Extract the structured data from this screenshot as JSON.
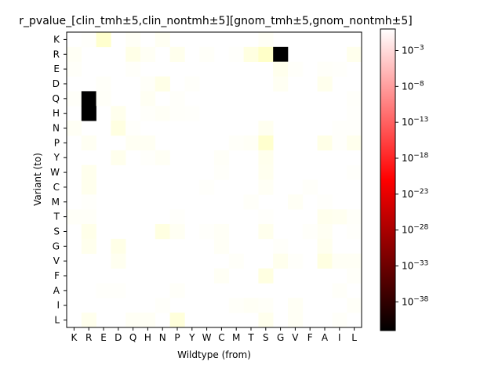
{
  "chart_data": {
    "type": "heatmap",
    "title": "r_pvalue_[clin_tmh±5,clin_nontmh±5][gnom_tmh±5,gnom_nontmh±5]",
    "xlabel": "Wildtype (from)",
    "ylabel": "Variant (to)",
    "x_categories": [
      "K",
      "R",
      "E",
      "D",
      "Q",
      "H",
      "N",
      "P",
      "Y",
      "W",
      "C",
      "M",
      "T",
      "S",
      "G",
      "V",
      "F",
      "A",
      "I",
      "L"
    ],
    "y_categories": [
      "K",
      "R",
      "E",
      "D",
      "Q",
      "H",
      "N",
      "P",
      "Y",
      "W",
      "C",
      "M",
      "T",
      "S",
      "G",
      "V",
      "F",
      "A",
      "I",
      "L"
    ],
    "colormap": "afmhot",
    "color_scale": "log10",
    "colorbar": {
      "log10_range": [
        -42,
        0
      ],
      "tick_exponents": [
        -3,
        -8,
        -13,
        -18,
        -23,
        -28,
        -33,
        -38
      ],
      "tick_labels": [
        "10^-3",
        "10^-8",
        "10^-13",
        "10^-18",
        "10^-23",
        "10^-28",
        "10^-33",
        "10^-38"
      ]
    },
    "log10_values": [
      [
        null,
        -0.3,
        -4,
        null,
        -0.7,
        null,
        -1,
        null,
        null,
        null,
        null,
        null,
        null,
        -0.7,
        null,
        null,
        null,
        null,
        null,
        null
      ],
      [
        -0.8,
        null,
        null,
        null,
        -2,
        -0.8,
        null,
        -1.5,
        null,
        -0.5,
        null,
        -0.3,
        -2.5,
        -4.5,
        -45,
        null,
        null,
        null,
        null,
        -1.5
      ],
      [
        -0.5,
        null,
        null,
        null,
        -0.4,
        null,
        null,
        null,
        null,
        null,
        null,
        null,
        null,
        null,
        -1.5,
        -0.4,
        null,
        -0.5,
        -0.3,
        null
      ],
      [
        null,
        null,
        -0.5,
        null,
        null,
        -0.6,
        -2,
        null,
        -0.4,
        null,
        null,
        null,
        null,
        null,
        -1,
        null,
        null,
        -1.5,
        null,
        null
      ],
      [
        -0.5,
        -45,
        -0.6,
        null,
        null,
        -1,
        null,
        -0.4,
        null,
        null,
        null,
        null,
        null,
        null,
        null,
        null,
        null,
        null,
        null,
        -0.4
      ],
      [
        null,
        -45,
        null,
        -1.5,
        null,
        -0.4,
        -0.7,
        -0.4,
        -0.3,
        null,
        null,
        null,
        null,
        null,
        null,
        null,
        null,
        null,
        null,
        -0.3
      ],
      [
        -0.8,
        null,
        null,
        -2.5,
        -0.3,
        null,
        null,
        null,
        null,
        null,
        null,
        null,
        null,
        -1.2,
        null,
        null,
        null,
        null,
        -0.3,
        -0.3
      ],
      [
        null,
        -1,
        null,
        null,
        -1,
        -1,
        null,
        null,
        null,
        null,
        null,
        -0.5,
        -0.7,
        -4,
        null,
        null,
        null,
        -2,
        -0.3,
        -1.5
      ],
      [
        null,
        null,
        null,
        -1.5,
        null,
        -0.3,
        -0.8,
        null,
        null,
        null,
        -0.6,
        null,
        null,
        -1.5,
        null,
        null,
        null,
        null,
        null,
        null
      ],
      [
        null,
        -1.5,
        null,
        null,
        null,
        null,
        null,
        null,
        null,
        null,
        -0.4,
        null,
        null,
        -1.3,
        null,
        null,
        null,
        null,
        null,
        -0.3
      ],
      [
        null,
        -1.5,
        null,
        null,
        null,
        null,
        null,
        null,
        null,
        -0.3,
        null,
        null,
        null,
        -0.8,
        null,
        null,
        -0.4,
        null,
        null,
        null
      ],
      [
        null,
        -0.3,
        null,
        null,
        null,
        null,
        null,
        null,
        null,
        null,
        null,
        null,
        -0.5,
        null,
        null,
        -0.8,
        null,
        -0.3,
        null,
        null
      ],
      [
        -0.6,
        -0.6,
        null,
        null,
        null,
        null,
        null,
        -0.3,
        null,
        null,
        null,
        null,
        null,
        -0.3,
        null,
        null,
        null,
        -1.5,
        -1.2,
        -0.5
      ],
      [
        null,
        -1.8,
        null,
        null,
        null,
        null,
        -2.5,
        -1,
        null,
        -0.3,
        -0.7,
        null,
        null,
        -1.5,
        null,
        null,
        -0.4,
        -1,
        null,
        -0.3
      ],
      [
        null,
        -1.5,
        null,
        -2,
        null,
        null,
        null,
        null,
        null,
        null,
        -0.7,
        null,
        null,
        null,
        -0.4,
        null,
        null,
        -1.3,
        null,
        null
      ],
      [
        null,
        null,
        null,
        -1.2,
        null,
        null,
        null,
        null,
        null,
        null,
        null,
        -0.5,
        null,
        null,
        -1.5,
        -0.4,
        null,
        -2.5,
        -0.8,
        -0.8
      ],
      [
        null,
        null,
        null,
        null,
        null,
        null,
        null,
        null,
        null,
        null,
        -0.8,
        null,
        null,
        -2.5,
        null,
        null,
        null,
        null,
        null,
        -0.5
      ],
      [
        null,
        null,
        -0.3,
        -0.3,
        null,
        null,
        null,
        -0.5,
        null,
        null,
        null,
        null,
        null,
        null,
        null,
        null,
        null,
        null,
        -0.5,
        null
      ],
      [
        null,
        null,
        null,
        null,
        null,
        null,
        -0.4,
        null,
        null,
        null,
        null,
        -0.5,
        -0.8,
        -0.6,
        null,
        -0.8,
        null,
        null,
        null,
        -0.6
      ],
      [
        null,
        -1.5,
        null,
        null,
        -0.8,
        -0.8,
        null,
        -3,
        null,
        null,
        null,
        null,
        null,
        -1.5,
        null,
        -0.8,
        null,
        null,
        -0.5,
        null
      ]
    ]
  }
}
